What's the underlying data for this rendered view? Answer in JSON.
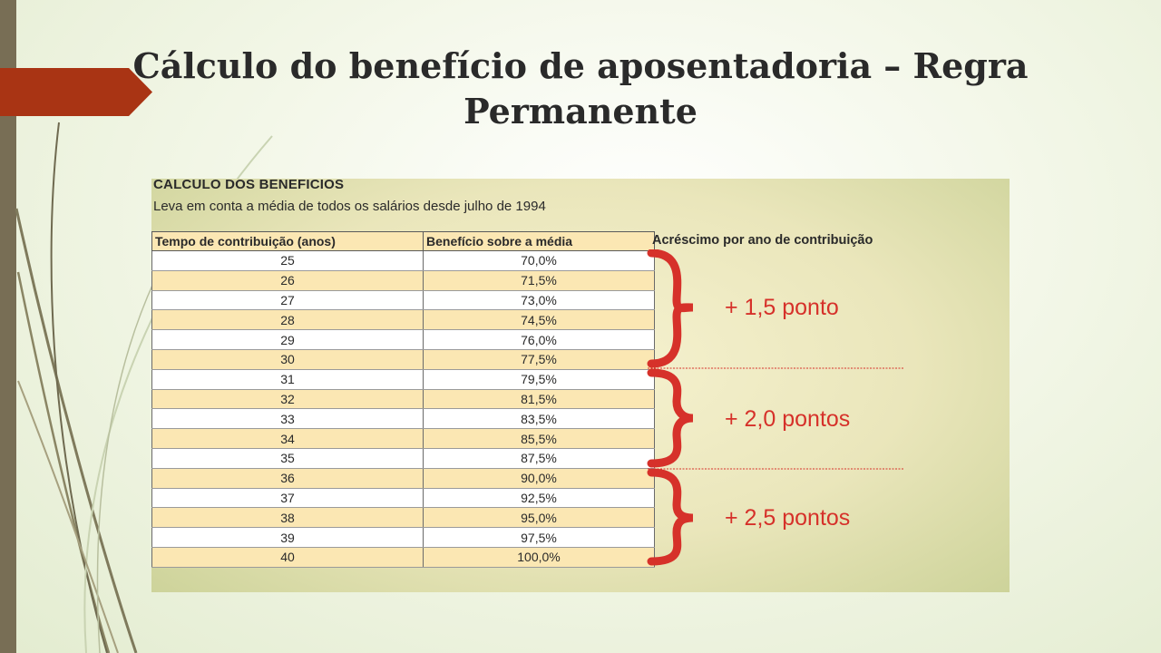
{
  "slide": {
    "title": "Cálculo do benefício de aposentadoria – Regra Permanente"
  },
  "image": {
    "heading": "CALCULO DOS BENEFICIOS",
    "subtitle": "Leva em conta a média de todos os salários desde julho de 1994",
    "table": {
      "headers": [
        "Tempo de contribuição (anos)",
        "Benefício sobre a média"
      ],
      "rows": [
        [
          "25",
          "70,0%"
        ],
        [
          "26",
          "71,5%"
        ],
        [
          "27",
          "73,0%"
        ],
        [
          "28",
          "74,5%"
        ],
        [
          "29",
          "76,0%"
        ],
        [
          "30",
          "77,5%"
        ],
        [
          "31",
          "79,5%"
        ],
        [
          "32",
          "81,5%"
        ],
        [
          "33",
          "83,5%"
        ],
        [
          "34",
          "85,5%"
        ],
        [
          "35",
          "87,5%"
        ],
        [
          "36",
          "90,0%"
        ],
        [
          "37",
          "92,5%"
        ],
        [
          "38",
          "95,0%"
        ],
        [
          "39",
          "97,5%"
        ],
        [
          "40",
          "100,0%"
        ]
      ]
    },
    "increment_header": "Acréscimo por ano de contribuição",
    "increments": [
      "+ 1,5 ponto",
      "+ 2,0 pontos",
      "+ 2,5 pontos"
    ],
    "colors": {
      "accent_red": "#d6312a",
      "row_tint": "#fbe7b3",
      "flag": "#a93414"
    }
  }
}
